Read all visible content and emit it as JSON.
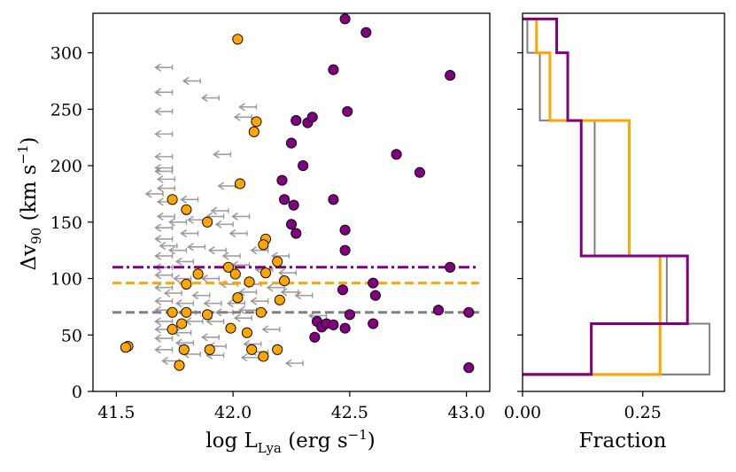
{
  "chart_data": [
    {
      "type": "scatter",
      "xlabel_main": "log L",
      "xlabel_sub": "Lya",
      "xlabel_unit": "(erg s",
      "xlabel_exp": "−1",
      "xlabel_close": ")",
      "ylabel_main": "Δv",
      "ylabel_sub": "90",
      "ylabel_unit": "(km s",
      "ylabel_exp": "−1",
      "ylabel_close": ")",
      "xlim": [
        41.4,
        43.1
      ],
      "ylim": [
        0,
        335
      ],
      "xticks": [
        "41.5",
        "42.0",
        "42.5",
        "43.0"
      ],
      "xtick_values": [
        41.5,
        42.0,
        42.5,
        43.0
      ],
      "yticks": [
        "0",
        "50",
        "100",
        "150",
        "200",
        "250",
        "300"
      ],
      "ytick_values": [
        0,
        50,
        100,
        150,
        200,
        250,
        300
      ],
      "colors": {
        "purple": "#800080",
        "orange": "#FFA500",
        "gray": "#808080"
      },
      "hlines": [
        {
          "name": "purple-median",
          "y": 110,
          "color": "#800080",
          "style": "dashdot"
        },
        {
          "name": "orange-median",
          "y": 96,
          "color": "#FFA500",
          "style": "dashed"
        },
        {
          "name": "gray-median",
          "y": 70,
          "color": "#808080",
          "style": "dashed"
        }
      ],
      "series": [
        {
          "name": "purple",
          "color": "#800080",
          "points": [
            [
              42.48,
              330
            ],
            [
              42.57,
              318
            ],
            [
              42.93,
              280
            ],
            [
              42.43,
              285
            ],
            [
              42.27,
              240
            ],
            [
              42.32,
              238
            ],
            [
              42.34,
              243
            ],
            [
              42.49,
              248
            ],
            [
              42.7,
              210
            ],
            [
              42.8,
              194
            ],
            [
              42.3,
              200
            ],
            [
              42.25,
              220
            ],
            [
              42.21,
              187
            ],
            [
              42.22,
              170
            ],
            [
              42.26,
              165
            ],
            [
              42.43,
              170
            ],
            [
              42.25,
              148
            ],
            [
              42.27,
              140
            ],
            [
              42.48,
              143
            ],
            [
              42.48,
              125
            ],
            [
              42.93,
              110
            ],
            [
              42.6,
              96
            ],
            [
              42.61,
              85
            ],
            [
              42.47,
              90
            ],
            [
              42.88,
              72
            ],
            [
              43.01,
              70
            ],
            [
              42.5,
              68
            ],
            [
              42.36,
              62
            ],
            [
              42.38,
              57
            ],
            [
              42.4,
              60
            ],
            [
              42.43,
              59
            ],
            [
              42.48,
              56
            ],
            [
              42.35,
              48
            ],
            [
              42.6,
              60
            ],
            [
              43.01,
              21
            ]
          ]
        },
        {
          "name": "orange",
          "color": "#FFA500",
          "points": [
            [
              42.02,
              312
            ],
            [
              42.1,
              239
            ],
            [
              42.09,
              230
            ],
            [
              42.03,
              184
            ],
            [
              41.74,
              170
            ],
            [
              41.8,
              161
            ],
            [
              41.89,
              150
            ],
            [
              42.14,
              135
            ],
            [
              42.13,
              130
            ],
            [
              42.19,
              115
            ],
            [
              41.98,
              110
            ],
            [
              42.14,
              105
            ],
            [
              42.01,
              104
            ],
            [
              41.85,
              104
            ],
            [
              42.07,
              97
            ],
            [
              42.22,
              98
            ],
            [
              41.8,
              95
            ],
            [
              42.2,
              81
            ],
            [
              42.02,
              83
            ],
            [
              41.74,
              70
            ],
            [
              41.8,
              70
            ],
            [
              41.89,
              68
            ],
            [
              42.12,
              70
            ],
            [
              41.78,
              60
            ],
            [
              41.74,
              55
            ],
            [
              41.99,
              56
            ],
            [
              42.06,
              52
            ],
            [
              41.55,
              40
            ],
            [
              41.54,
              39
            ],
            [
              41.79,
              37
            ],
            [
              41.9,
              37
            ],
            [
              42.08,
              37
            ],
            [
              42.19,
              37
            ],
            [
              42.13,
              31
            ],
            [
              41.77,
              23
            ]
          ]
        }
      ],
      "upper_limits": {
        "name": "gray-upper-limits",
        "color": "#808080",
        "points": [
          [
            41.74,
            287
          ],
          [
            41.86,
            275
          ],
          [
            41.74,
            265
          ],
          [
            41.94,
            260
          ],
          [
            41.74,
            248
          ],
          [
            42.1,
            252
          ],
          [
            42.08,
            243
          ],
          [
            41.74,
            228
          ],
          [
            41.74,
            208
          ],
          [
            41.74,
            198
          ],
          [
            41.74,
            195
          ],
          [
            41.75,
            188
          ],
          [
            41.99,
            210
          ],
          [
            41.75,
            180
          ],
          [
            42.01,
            182
          ],
          [
            41.7,
            175
          ],
          [
            41.75,
            168
          ],
          [
            41.85,
            170
          ],
          [
            41.98,
            160
          ],
          [
            41.75,
            155
          ],
          [
            41.8,
            150
          ],
          [
            41.88,
            152
          ],
          [
            41.96,
            155
          ],
          [
            42.07,
            155
          ],
          [
            42.0,
            148
          ],
          [
            41.74,
            145
          ],
          [
            41.85,
            140
          ],
          [
            42.06,
            140
          ],
          [
            41.74,
            135
          ],
          [
            41.76,
            129
          ],
          [
            41.8,
            125
          ],
          [
            41.88,
            128
          ],
          [
            41.97,
            125
          ],
          [
            42.03,
            120
          ],
          [
            42.15,
            125
          ],
          [
            41.74,
            120
          ],
          [
            41.83,
            115
          ],
          [
            42.24,
            120
          ],
          [
            41.74,
            110
          ],
          [
            42.07,
            112
          ],
          [
            42.17,
            108
          ],
          [
            42.27,
            105
          ],
          [
            41.74,
            103
          ],
          [
            41.82,
            100
          ],
          [
            41.94,
            100
          ],
          [
            42.02,
            95
          ],
          [
            42.12,
            95
          ],
          [
            42.22,
            92
          ],
          [
            41.74,
            92
          ],
          [
            41.78,
            87
          ],
          [
            41.9,
            85
          ],
          [
            42.1,
            88
          ],
          [
            42.28,
            88
          ],
          [
            41.74,
            80
          ],
          [
            41.83,
            78
          ],
          [
            41.95,
            78
          ],
          [
            42.05,
            78
          ],
          [
            42.15,
            80
          ],
          [
            42.34,
            85
          ],
          [
            41.74,
            72
          ],
          [
            41.84,
            70
          ],
          [
            42.0,
            70
          ],
          [
            42.1,
            72
          ],
          [
            41.74,
            62
          ],
          [
            41.87,
            62
          ],
          [
            41.96,
            62
          ],
          [
            42.08,
            65
          ],
          [
            42.4,
            67
          ],
          [
            41.74,
            55
          ],
          [
            41.82,
            52
          ],
          [
            41.94,
            48
          ],
          [
            42.2,
            55
          ],
          [
            41.74,
            47
          ],
          [
            41.83,
            43
          ],
          [
            41.97,
            40
          ],
          [
            42.12,
            42
          ],
          [
            41.74,
            37
          ],
          [
            41.86,
            33
          ],
          [
            41.96,
            32
          ],
          [
            42.11,
            30
          ],
          [
            41.77,
            27
          ],
          [
            42.3,
            25
          ],
          [
            42.15,
            35
          ]
        ]
      }
    },
    {
      "type": "histogram",
      "xlabel": "Fraction",
      "xlim": [
        0,
        0.42
      ],
      "xticks": [
        "0.00",
        "0.25"
      ],
      "xtick_values": [
        0.0,
        0.25
      ],
      "ylim": [
        0,
        335
      ],
      "series": [
        {
          "name": "purple",
          "color": "#800080",
          "lw": 3,
          "bins": [
            15,
            60,
            120,
            240,
            300,
            330
          ],
          "fractions": [
            0.143,
            0.343,
            0.122,
            0.094,
            0.071
          ]
        },
        {
          "name": "orange",
          "color": "#FFA500",
          "lw": 3,
          "bins": [
            15,
            60,
            120,
            240,
            300,
            330
          ],
          "fractions": [
            0.286,
            0.286,
            0.222,
            0.057,
            0.029
          ]
        },
        {
          "name": "gray",
          "color": "#808080",
          "lw": 2,
          "bins": [
            15,
            60,
            120,
            240,
            300,
            330
          ],
          "fractions": [
            0.389,
            0.3,
            0.15,
            0.036,
            0.01
          ]
        }
      ]
    }
  ]
}
